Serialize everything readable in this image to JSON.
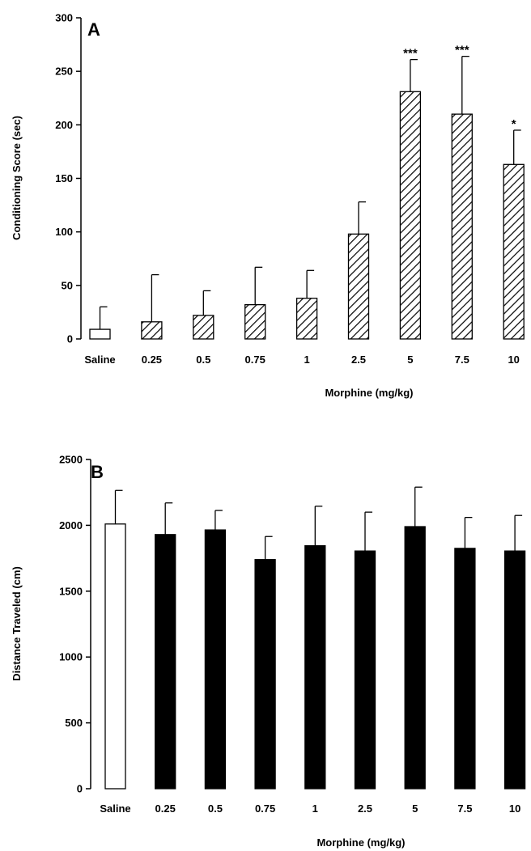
{
  "chart_data": [
    {
      "type": "bar",
      "panel_label": "A",
      "xlabel": "Morphine (mg/kg)",
      "ylabel": "Conditioning Score (sec)",
      "categories": [
        "Saline",
        "0.25",
        "0.5",
        "0.75",
        "1",
        "2.5",
        "5",
        "7.5",
        "10"
      ],
      "values": [
        9,
        16,
        22,
        32,
        38,
        98,
        231,
        210,
        163
      ],
      "errors": [
        21,
        44,
        23,
        35,
        26,
        30,
        30,
        54,
        32
      ],
      "significance": [
        "",
        "",
        "",
        "",
        "",
        "",
        "***",
        "***",
        "*"
      ],
      "fills": [
        "open",
        "hatched",
        "hatched",
        "hatched",
        "hatched",
        "hatched",
        "hatched",
        "hatched",
        "hatched"
      ],
      "ylim": [
        0,
        300
      ],
      "yticks": [
        "0",
        "50",
        "100",
        "150",
        "200",
        "250",
        "300"
      ]
    },
    {
      "type": "bar",
      "panel_label": "B",
      "xlabel": "Morphine (mg/kg)",
      "ylabel": "Distance Traveled (cm)",
      "categories": [
        "Saline",
        "0.25",
        "0.5",
        "0.75",
        "1",
        "2.5",
        "5",
        "7.5",
        "10"
      ],
      "values": [
        2010,
        1930,
        1965,
        1740,
        1845,
        1805,
        1990,
        1825,
        1805
      ],
      "errors": [
        255,
        240,
        148,
        175,
        300,
        295,
        300,
        235,
        270
      ],
      "fills": [
        "open",
        "solid",
        "solid",
        "solid",
        "solid",
        "solid",
        "solid",
        "solid",
        "solid"
      ],
      "ylim": [
        0,
        2500
      ],
      "yticks": [
        "0",
        "500",
        "1000",
        "1500",
        "2000",
        "2500"
      ]
    }
  ]
}
